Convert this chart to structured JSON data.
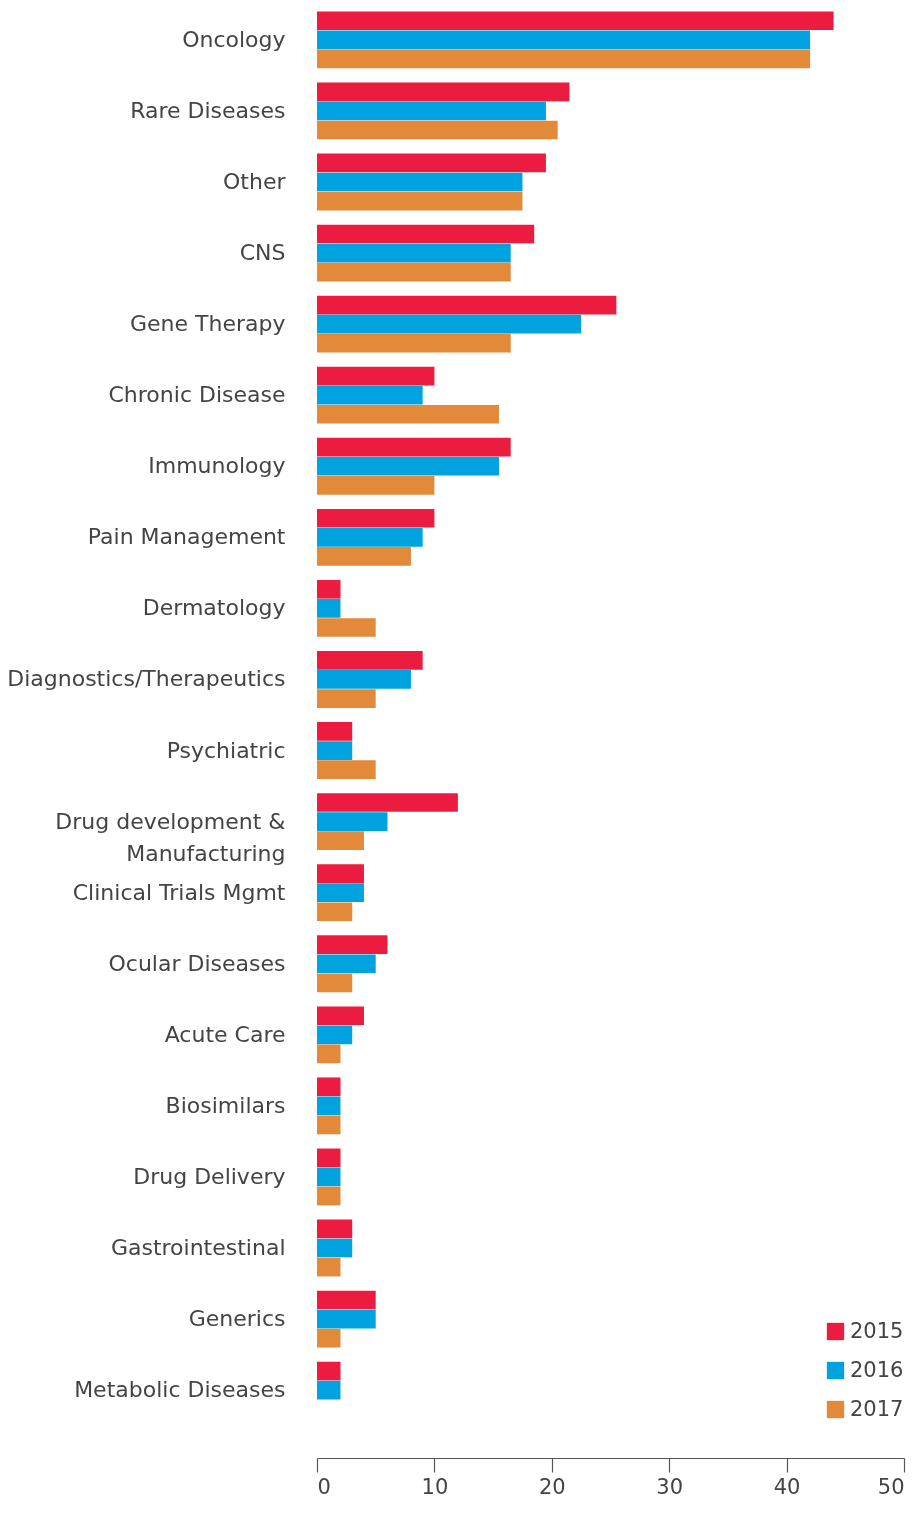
{
  "chart_data": {
    "type": "bar",
    "orientation": "horizontal",
    "categories": [
      "Oncology",
      "Rare Diseases",
      "Other",
      "CNS",
      "Gene Therapy",
      "Chronic Disease",
      "Immunology",
      "Pain Management",
      "Dermatology",
      "Diagnostics/Therapeutics",
      "Psychiatric",
      "Drug development & Manufacturing",
      "Clinical Trials Mgmt",
      "Ocular Diseases",
      "Acute Care",
      "Biosimilars",
      "Drug Delivery",
      "Gastrointestinal",
      "Generics",
      "Metabolic Diseases"
    ],
    "series": [
      {
        "name": "2015",
        "color": "#ec1c40",
        "values": [
          44,
          21.5,
          19.5,
          18.5,
          25.5,
          10,
          16.5,
          10,
          2,
          9,
          3,
          12,
          4,
          6,
          4,
          2,
          2,
          3,
          5,
          2
        ]
      },
      {
        "name": "2016",
        "color": "#00a3df",
        "values": [
          42,
          19.5,
          17.5,
          16.5,
          22.5,
          9,
          15.5,
          9,
          2,
          8,
          3,
          6,
          4,
          5,
          3,
          2,
          2,
          3,
          5,
          2
        ]
      },
      {
        "name": "2017",
        "color": "#e2893a",
        "values": [
          42,
          20.5,
          17.5,
          16.5,
          16.5,
          15.5,
          10,
          8,
          5,
          5,
          5,
          4,
          3,
          3,
          2,
          2,
          2,
          2,
          2,
          0
        ]
      }
    ],
    "xlim": [
      0,
      50
    ],
    "xticks": [
      0,
      10,
      20,
      30,
      40,
      50
    ],
    "legend": "bottom right",
    "grid": false
  }
}
